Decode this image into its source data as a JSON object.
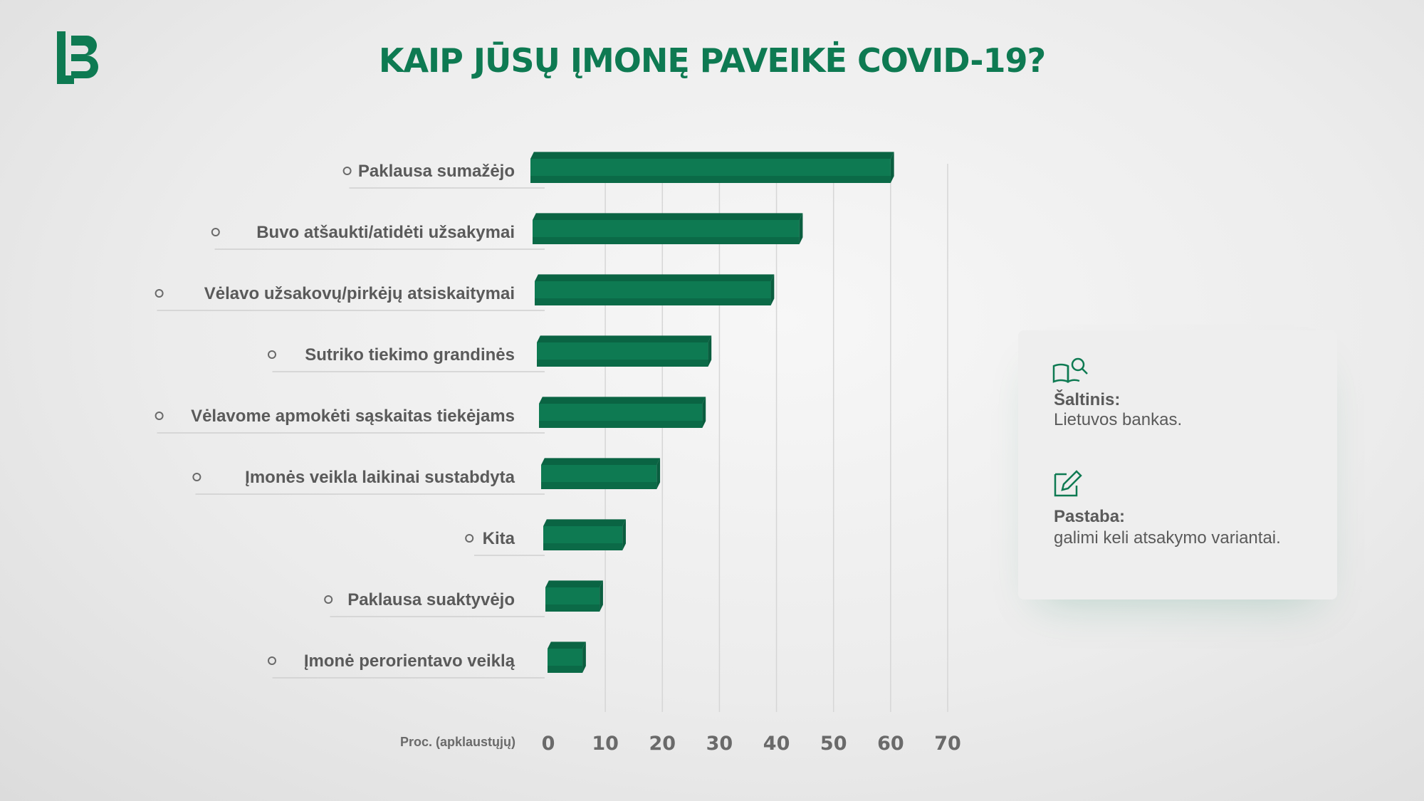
{
  "header": {
    "title": "KAIP JŪSŲ ĮMONĘ  PAVEIKĖ COVID-19?",
    "logo_text": "LB"
  },
  "chart_data": {
    "type": "bar",
    "orientation": "horizontal",
    "categories": [
      "Paklausa sumažėjo",
      "Buvo atšaukti/atidėti užsakymai",
      "Vėlavo užsakovų/pirkėjų atsiskaitymai",
      "Sutriko tiekimo grandinės",
      "Vėlavome apmokėti sąskaitas tiekėjams",
      "Įmonės veikla laikinai sustabdyta",
      "Kita",
      "Paklausa suaktyvėjo",
      "Įmonė perorientavo veiklą"
    ],
    "values": [
      60,
      44,
      39,
      28,
      27,
      19,
      13,
      9,
      6
    ],
    "xlabel": "Proc. (apklaustųjų)",
    "xlim": [
      0,
      70
    ],
    "ticks": [
      0,
      10,
      20,
      30,
      40,
      50,
      60,
      70
    ],
    "grid": true,
    "bar_color": "#0e7a52"
  },
  "info": {
    "source_label": "Šaltinis:",
    "source_text": "Lietuvos bankas.",
    "note_label": "Pastaba:",
    "note_text": "galimi keli atsakymo variantai."
  },
  "icons": [
    "book-search-icon",
    "edit-icon"
  ]
}
